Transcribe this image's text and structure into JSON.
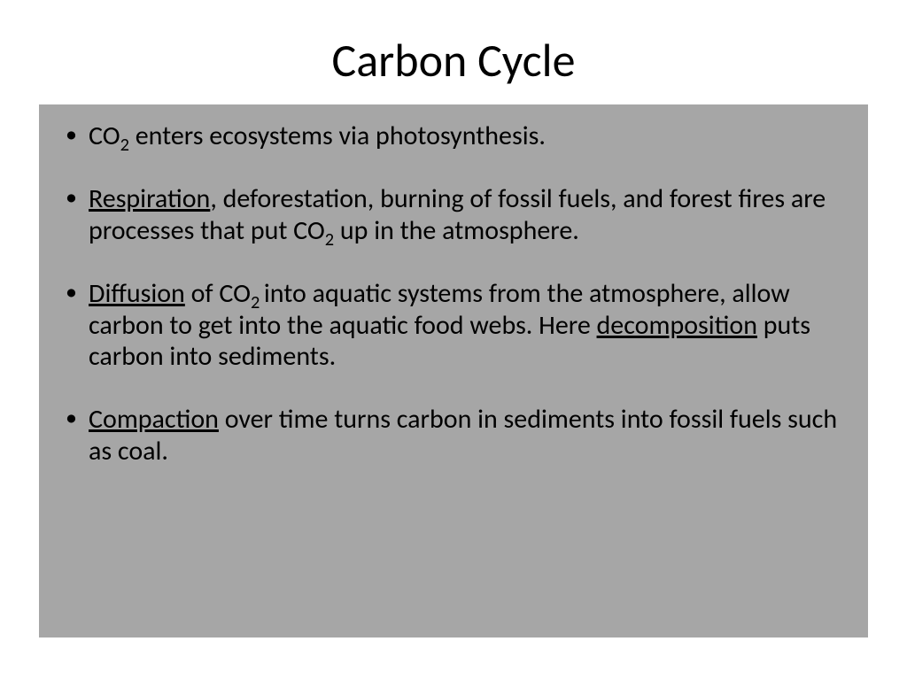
{
  "slide": {
    "title": "Carbon Cycle",
    "background_color": "#ffffff",
    "content_background_color": "#a6a6a6",
    "text_color": "#000000",
    "title_fontsize": 52,
    "body_fontsize": 30,
    "bullets": [
      {
        "segments": [
          {
            "text": "CO",
            "underline": false
          },
          {
            "text": "2",
            "sub": true
          },
          {
            "text": " enters ecosystems via photosynthesis.",
            "underline": false
          }
        ]
      },
      {
        "segments": [
          {
            "text": "Respiration",
            "underline": true
          },
          {
            "text": ", deforestation, burning of fossil fuels, and forest fires are processes that put CO",
            "underline": false
          },
          {
            "text": "2",
            "sub": true
          },
          {
            "text": " up in the atmosphere.",
            "underline": false
          }
        ]
      },
      {
        "segments": [
          {
            "text": "Diffusion",
            "underline": true
          },
          {
            "text": " of CO",
            "underline": false
          },
          {
            "text": "2 ",
            "sub": true
          },
          {
            "text": "into aquatic systems from the atmosphere, allow carbon to get into the aquatic food webs. Here ",
            "underline": false
          },
          {
            "text": "decomposition",
            "underline": true
          },
          {
            "text": " puts carbon into sediments.",
            "underline": false
          }
        ]
      },
      {
        "segments": [
          {
            "text": "Compaction",
            "underline": true
          },
          {
            "text": " over time turns carbon in sediments into fossil fuels such as coal.",
            "underline": false
          }
        ]
      }
    ]
  }
}
